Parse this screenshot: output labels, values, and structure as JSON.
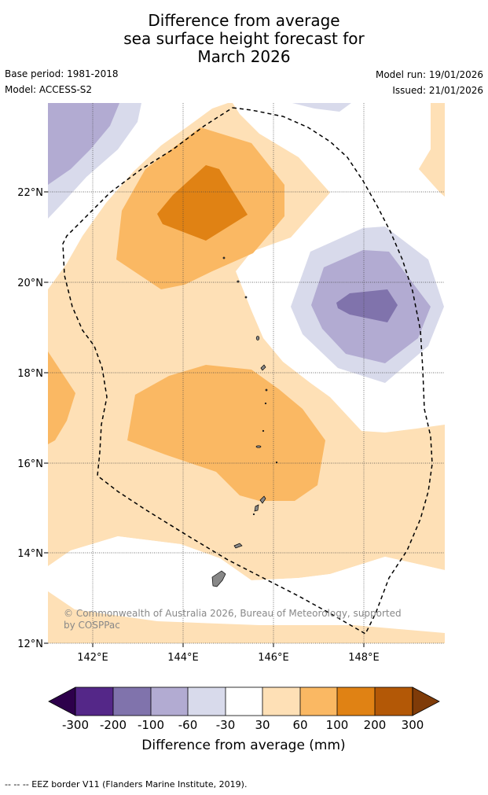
{
  "title": {
    "line1": "Difference from average",
    "line2": "sea surface height forecast for",
    "line3": "March 2026"
  },
  "meta": {
    "base_period": "Base period: 1981-2018",
    "model": "Model: ACCESS-S2",
    "model_run": "Model run: 19/01/2026",
    "issued": "Issued: 21/01/2026"
  },
  "map": {
    "lat_labels": [
      "22°N",
      "20°N",
      "18°N",
      "16°N",
      "14°N",
      "12°N"
    ],
    "lon_labels": [
      "142°E",
      "144°E",
      "146°E",
      "148°E"
    ],
    "copyright": "© Commonwealth of Australia 2026, Bureau of Meteorology, supported by COSPPac"
  },
  "colorbar": {
    "ticks": [
      "-300",
      "-200",
      "-100",
      "-60",
      "-30",
      "30",
      "60",
      "100",
      "200",
      "300"
    ],
    "label": "Difference from average (mm)",
    "colors": {
      "below_min": "#2d004b",
      "b1": "#542788",
      "b2": "#8073ac",
      "b3": "#b2abd2",
      "b4": "#d8daeb",
      "b5": "#ffffff",
      "b6": "#fee0b6",
      "b7": "#fab863",
      "b8": "#e08214",
      "b9": "#b35806",
      "above_max": "#7f3b08"
    }
  },
  "footnote": "-- -- -- EEZ border V11 (Flanders Marine Institute, 2019)."
}
